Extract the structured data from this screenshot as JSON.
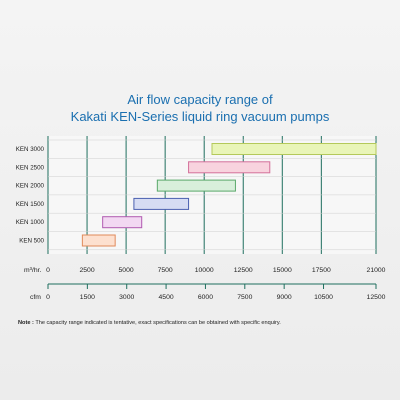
{
  "chart_data": {
    "type": "bar",
    "title": [
      "Air flow capacity range of",
      "Kakati KEN-Series liquid ring vacuum pumps"
    ],
    "categories": [
      "KEN 3000",
      "KEN 2500",
      "KEN 2000",
      "KEN 1500",
      "KEN 1000",
      "KEN 500"
    ],
    "series": [
      {
        "category": "KEN 3000",
        "start": 10500,
        "end": 21000,
        "color": "#e9f5b8",
        "stroke": "#b4c95a"
      },
      {
        "category": "KEN 2500",
        "start": 9000,
        "end": 14200,
        "color": "#f8d3de",
        "stroke": "#d4709a"
      },
      {
        "category": "KEN 2000",
        "start": 7000,
        "end": 12000,
        "color": "#d8efdb",
        "stroke": "#5aa86a"
      },
      {
        "category": "KEN 1500",
        "start": 5500,
        "end": 9000,
        "color": "#d6dcf3",
        "stroke": "#4a5fb0"
      },
      {
        "category": "KEN 1000",
        "start": 3500,
        "end": 6000,
        "color": "#f2d8f2",
        "stroke": "#b05ab0"
      },
      {
        "category": "KEN 500",
        "start": 2200,
        "end": 4300,
        "color": "#fde0cf",
        "stroke": "#e08a5a"
      }
    ],
    "x_primary": {
      "label": "m³/hr.",
      "range": [
        0,
        21000
      ],
      "ticks": [
        "0",
        "2500",
        "5000",
        "7500",
        "10000",
        "12500",
        "15000",
        "17500",
        "21000"
      ]
    },
    "x_secondary": {
      "label": "cfm",
      "range": [
        0,
        12500
      ],
      "ticks": [
        "0",
        "1500",
        "3000",
        "4500",
        "6000",
        "7500",
        "9000",
        "10500",
        "12500"
      ]
    },
    "grid": true
  },
  "note": {
    "label": "Note :",
    "text": "The capacity range indicated is tentative, exact specifications can be obtained with specific enquiry."
  },
  "colors": {
    "title": "#1a6fb0",
    "grid": "#1e6e5e",
    "axis": "#1e6e5e"
  }
}
